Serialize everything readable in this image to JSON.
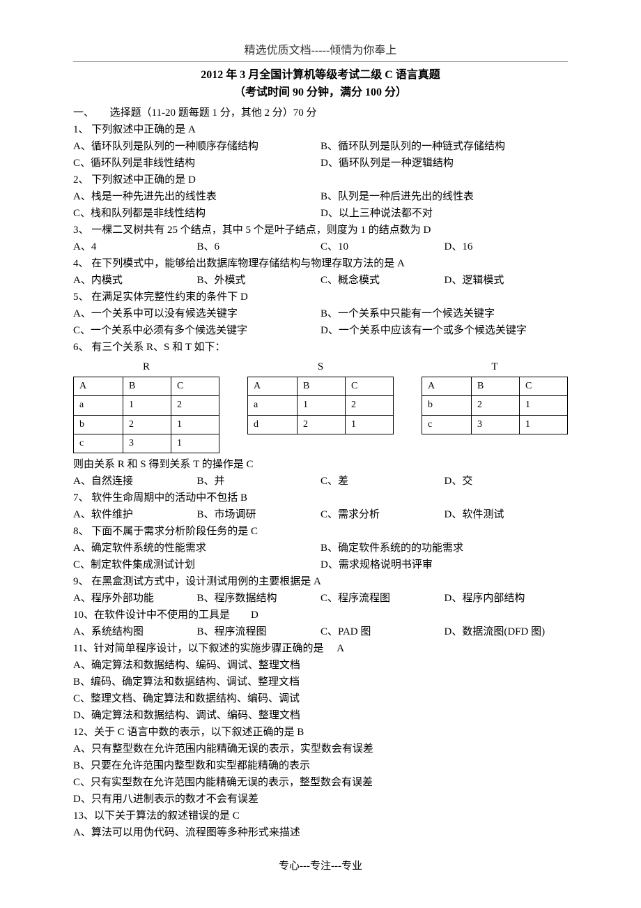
{
  "header": "精选优质文档-----倾情为你奉上",
  "title": "2012 年 3 月全国计算机等级考试二级 C 语言真题",
  "subtitle": "（考试时间 90 分钟，满分 100 分）",
  "section1": "一、　　选择题（11-20 题每题 1 分，其他 2 分）70 分",
  "q1": {
    "stem": "1、 下列叙述中正确的是 A",
    "a": "A、循环队列是队列的一种顺序存储结构",
    "b": "B、循环队列是队列的一种链式存储结构",
    "c": "C、循环队列是非线性结构",
    "d": "D、循环队列是一种逻辑结构"
  },
  "q2": {
    "stem": "2、 下列叙述中正确的是 D",
    "a": "A、栈是一种先进先出的线性表",
    "b": "B、队列是一种后进先出的线性表",
    "c": "C、栈和队列都是非线性结构",
    "d": "D、以上三种说法都不对"
  },
  "q3": {
    "stem": "3、 一棵二叉树共有 25 个结点，其中 5 个是叶子结点，则度为 1 的结点数为 D",
    "a": "A、4",
    "b": "B、6",
    "c": "C、10",
    "d": "D、16"
  },
  "q4": {
    "stem": "4、 在下列模式中，能够给出数据库物理存储结构与物理存取方法的是 A",
    "a": "A、内模式",
    "b": "B、外模式",
    "c": "C、概念模式",
    "d": "D、逻辑模式"
  },
  "q5": {
    "stem": "5、 在满足实体完整性约束的条件下 D",
    "a": "A、一个关系中可以没有候选关键字",
    "b": "B、一个关系中只能有一个候选关键字",
    "c": "C、一个关系中必须有多个候选关键字",
    "d": "D、一个关系中应该有一个或多个候选关键字"
  },
  "q6": {
    "stem": "6、 有三个关系 R、S 和 T 如下：",
    "tables": {
      "R": {
        "label": "R",
        "header": [
          "A",
          "B",
          "C"
        ],
        "rows": [
          [
            "a",
            "1",
            "2"
          ],
          [
            "b",
            "2",
            "1"
          ],
          [
            "c",
            "3",
            "1"
          ]
        ]
      },
      "S": {
        "label": "S",
        "header": [
          "A",
          "B",
          "C"
        ],
        "rows": [
          [
            "a",
            "1",
            "2"
          ],
          [
            "d",
            "2",
            "1"
          ]
        ]
      },
      "T": {
        "label": "T",
        "header": [
          "A",
          "B",
          "C"
        ],
        "rows": [
          [
            "b",
            "2",
            "1"
          ],
          [
            "c",
            "3",
            "1"
          ]
        ]
      }
    },
    "post": "则由关系 R 和 S 得到关系 T 的操作是 C",
    "a": "A、自然连接",
    "b": "B、并",
    "c": "C、差",
    "d": "D、交"
  },
  "q7": {
    "stem": "7、 软件生命周期中的活动中不包括 B",
    "a": "A、软件维护",
    "b": "B、市场调研",
    "c": "C、需求分析",
    "d": "D、软件测试"
  },
  "q8": {
    "stem": "8、 下面不属于需求分析阶段任务的是 C",
    "a": "A、确定软件系统的性能需求",
    "b": "B、确定软件系统的的功能需求",
    "c": "C、制定软件集成测试计划",
    "d": "D、需求规格说明书评审"
  },
  "q9": {
    "stem": "9、 在黑盒测试方式中，设计测试用例的主要根据是 A",
    "a": "A、程序外部功能",
    "b": "B、程序数据结构",
    "c": "C、程序流程图",
    "d": "D、程序内部结构"
  },
  "q10": {
    "stem": "10、在软件设计中不使用的工具是　　D",
    "a": "A、系统结构图",
    "b": "B、程序流程图",
    "c": "C、PAD 图",
    "d": "D、数据流图(DFD 图)"
  },
  "q11": {
    "stem": "11、针对简单程序设计，以下叙述的实施步骤正确的是　 A",
    "a": "A、确定算法和数据结构、编码、调试、整理文档",
    "b": "B、编码、确定算法和数据结构、调试、整理文档",
    "c": "C、整理文档、确定算法和数据结构、编码、调试",
    "d": "D、确定算法和数据结构、调试、编码、整理文档"
  },
  "q12": {
    "stem": "12、关于 C 语言中数的表示，以下叙述正确的是 B",
    "a": "A、只有整型数在允许范围内能精确无误的表示，实型数会有误差",
    "b": "B、只要在允许范围内整型数和实型都能精确的表示",
    "c": "C、只有实型数在允许范围内能精确无误的表示，整型数会有误差",
    "d": "D、只有用八进制表示的数才不会有误差"
  },
  "q13": {
    "stem": "13、以下关于算法的叙述错误的是 C",
    "a": "A、算法可以用伪代码、流程图等多种形式来描述"
  },
  "footer": "专心---专注---专业"
}
